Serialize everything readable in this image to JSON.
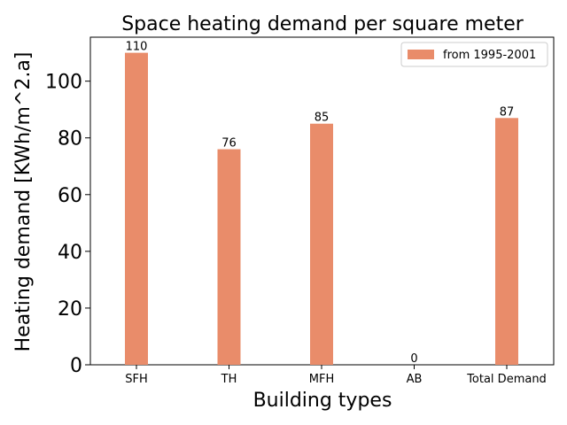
{
  "chart_data": {
    "type": "bar",
    "title": "Space heating demand per square meter",
    "xlabel": "Building types",
    "ylabel": "Heating demand [KWh/m^2.a]",
    "categories": [
      "SFH",
      "TH",
      "MFH",
      "AB",
      "Total Demand"
    ],
    "series": [
      {
        "name": "from 1995-2001",
        "values": [
          110,
          76,
          85,
          0,
          87
        ],
        "color": "#e98c6a"
      }
    ],
    "data_labels": [
      "110",
      "76",
      "85",
      "0",
      "87"
    ],
    "yticks": [
      0,
      20,
      40,
      60,
      80,
      100
    ],
    "ylim": [
      0,
      115.5
    ],
    "legend_position": "top-right"
  }
}
